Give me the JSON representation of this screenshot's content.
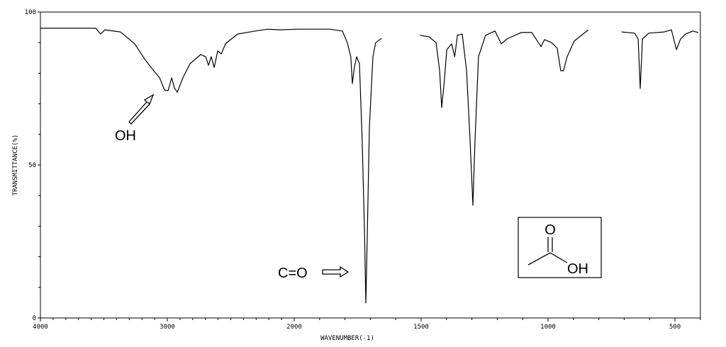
{
  "chart_data": {
    "type": "line",
    "xlabel": "WAVENUMBER(-1)",
    "ylabel": "TRANSMITTANCE(%)",
    "x": [
      4000,
      3564,
      3525,
      3492,
      3370,
      3257,
      3173,
      3117,
      3061,
      3022,
      2994,
      2966,
      2944,
      2922,
      2877,
      2821,
      2737,
      2698,
      2676,
      2654,
      2631,
      2603,
      2575,
      2542,
      2447,
      2307,
      2207,
      2112,
      1986,
      1860,
      1810,
      1791,
      1777,
      1771,
      1763,
      1754,
      1743,
      1732,
      1723,
      1718,
      1712,
      1704,
      1690,
      1679,
      1656,
      1600,
      1505,
      1469,
      1441,
      1427,
      1419,
      1410,
      1399,
      1380,
      1368,
      1357,
      1338,
      1321,
      1307,
      1296,
      1288,
      1274,
      1246,
      1209,
      1184,
      1162,
      1106,
      1064,
      1028,
      1014,
      986,
      964,
      950,
      939,
      925,
      897,
      841,
      780,
      710,
      659,
      645,
      637,
      628,
      603,
      542,
      514,
      494,
      478,
      458,
      430,
      408
    ],
    "values": [
      94.7,
      94.7,
      92.8,
      94.2,
      93.5,
      89.6,
      84.3,
      81.3,
      78.5,
      74.5,
      74.3,
      78.5,
      75.2,
      73.8,
      78.5,
      83.1,
      86.1,
      85.4,
      82.6,
      85.4,
      81.9,
      87.3,
      86.3,
      89.6,
      92.8,
      93.8,
      94.4,
      94.2,
      94.4,
      94.4,
      93.8,
      90.0,
      85.4,
      76.6,
      81.9,
      85.4,
      83.1,
      57.6,
      27.5,
      4.9,
      27.5,
      62.3,
      85.4,
      90.0,
      91.4,
      null,
      92.4,
      91.9,
      90.0,
      80.8,
      68.8,
      76.2,
      87.7,
      89.6,
      85.4,
      92.4,
      92.8,
      80.8,
      57.6,
      36.8,
      57.6,
      85.4,
      92.4,
      93.8,
      89.6,
      91.2,
      93.3,
      93.3,
      88.7,
      91.0,
      90.0,
      88.2,
      80.8,
      80.8,
      85.4,
      90.5,
      94.2,
      null,
      93.5,
      93.1,
      91.2,
      75.0,
      91.2,
      93.1,
      93.5,
      94.2,
      87.7,
      91.2,
      92.8,
      93.8,
      93.3
    ],
    "color": "#000000",
    "xlim": [
      4000,
      400
    ],
    "xticks": [
      4000,
      3000,
      2000,
      1500,
      1000,
      500
    ],
    "xminorticks": [
      3900,
      3800,
      3700,
      3600,
      3500,
      3400,
      3300,
      3200,
      3100,
      2900,
      2800,
      2700,
      2600,
      2500,
      2400,
      2300,
      2200,
      2100,
      1900,
      1800,
      1700,
      1600,
      1400,
      1300,
      1200,
      1100,
      900,
      800,
      700,
      600,
      400
    ],
    "ylim": [
      0,
      100
    ],
    "yticks": [
      0,
      50,
      100
    ],
    "yminorticks": [
      10,
      20,
      30,
      40,
      60,
      70,
      80,
      90
    ],
    "annotations": [
      "OH",
      "C=O",
      "O",
      "OH"
    ]
  }
}
